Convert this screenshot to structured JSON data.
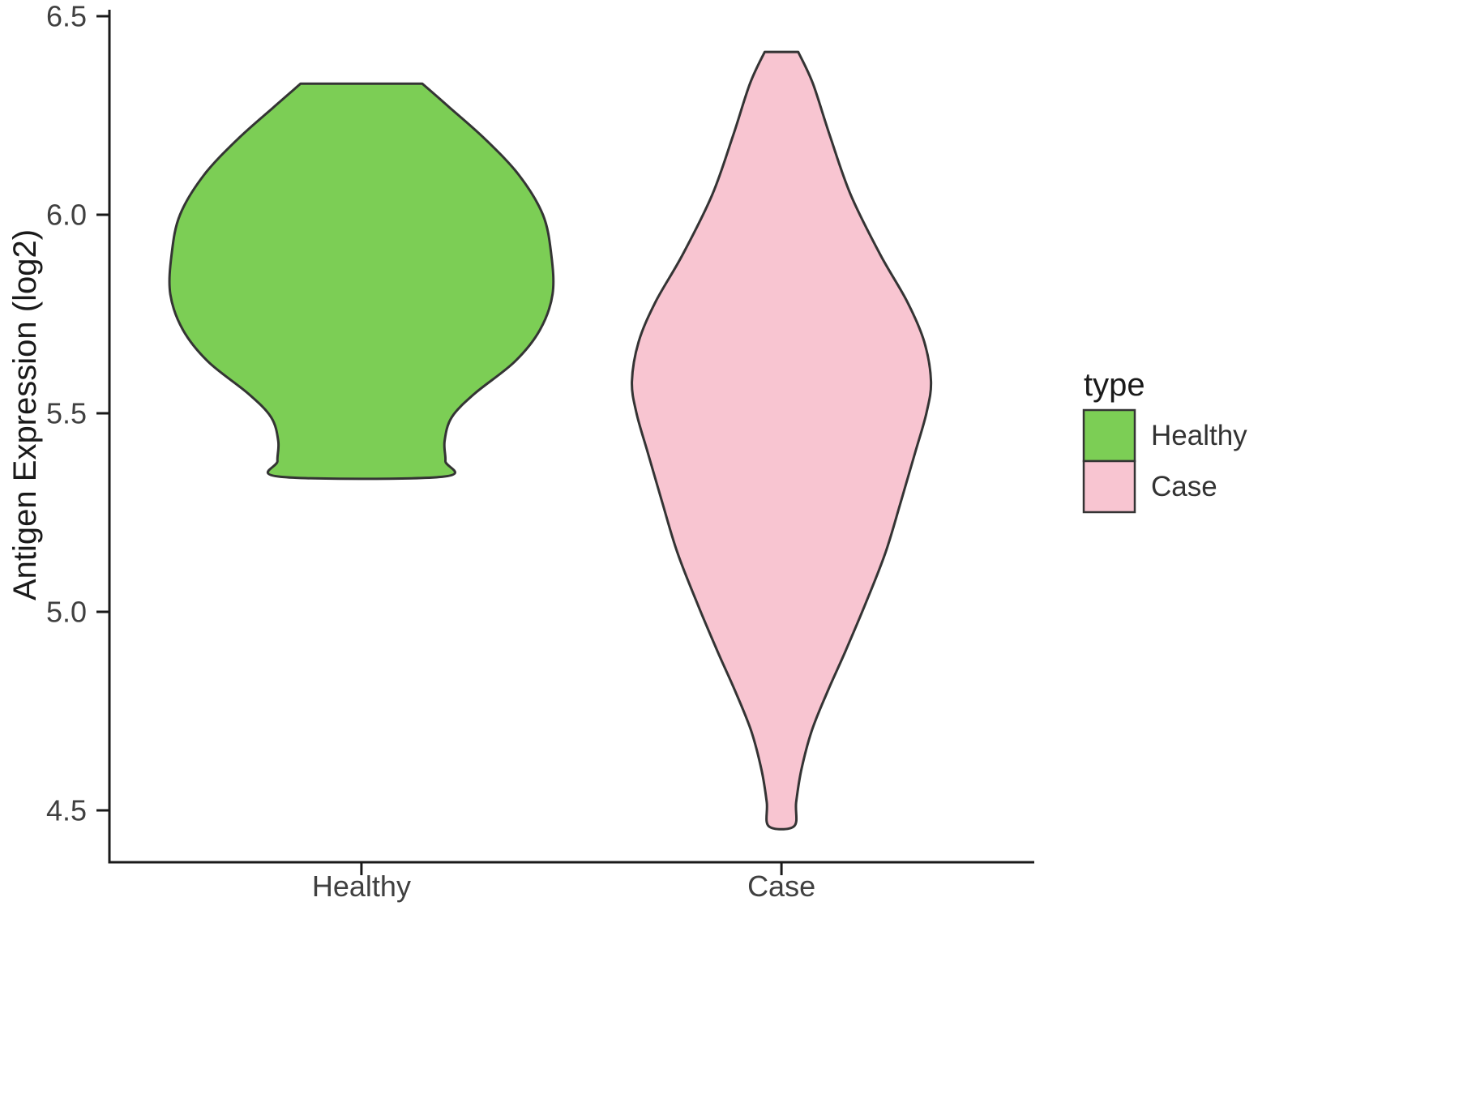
{
  "figure": {
    "background": "#ffffff",
    "axis_color": "#1a1a1a",
    "tick_label_color": "#404040",
    "title_color": "#1a1a1a",
    "violin_outline_color": "#343434"
  },
  "chart_data": {
    "type": "violin",
    "title": "",
    "xlabel": "",
    "ylabel": "Antigen Expression (log2)",
    "ylim": [
      4.37,
      6.55
    ],
    "yticks": [
      4.5,
      5.0,
      5.5,
      6.0,
      6.5
    ],
    "categories": [
      "Healthy",
      "Case"
    ],
    "legend_title": "type",
    "legend_position": "right",
    "grid": false,
    "series": [
      {
        "name": "Healthy",
        "fill": "#7CCE55",
        "position": 1,
        "value_range": [
          5.34,
          6.33
        ],
        "profile": [
          [
            6.33,
            0.145
          ],
          [
            6.27,
            0.21
          ],
          [
            6.19,
            0.295
          ],
          [
            6.1,
            0.375
          ],
          [
            6.0,
            0.432
          ],
          [
            5.9,
            0.452
          ],
          [
            5.8,
            0.455
          ],
          [
            5.71,
            0.425
          ],
          [
            5.63,
            0.365
          ],
          [
            5.55,
            0.27
          ],
          [
            5.49,
            0.215
          ],
          [
            5.43,
            0.198
          ],
          [
            5.38,
            0.2
          ],
          [
            5.34,
            0.192
          ]
        ]
      },
      {
        "name": "Case",
        "fill": "#F8C5D1",
        "position": 2,
        "value_range": [
          4.46,
          6.41
        ],
        "profile": [
          [
            6.41,
            0.04
          ],
          [
            6.33,
            0.075
          ],
          [
            6.2,
            0.115
          ],
          [
            6.05,
            0.165
          ],
          [
            5.9,
            0.235
          ],
          [
            5.78,
            0.3
          ],
          [
            5.68,
            0.34
          ],
          [
            5.58,
            0.356
          ],
          [
            5.5,
            0.345
          ],
          [
            5.4,
            0.318
          ],
          [
            5.28,
            0.285
          ],
          [
            5.15,
            0.248
          ],
          [
            5.02,
            0.2
          ],
          [
            4.9,
            0.152
          ],
          [
            4.8,
            0.11
          ],
          [
            4.7,
            0.072
          ],
          [
            4.6,
            0.047
          ],
          [
            4.52,
            0.035
          ],
          [
            4.46,
            0.03
          ]
        ]
      }
    ]
  }
}
